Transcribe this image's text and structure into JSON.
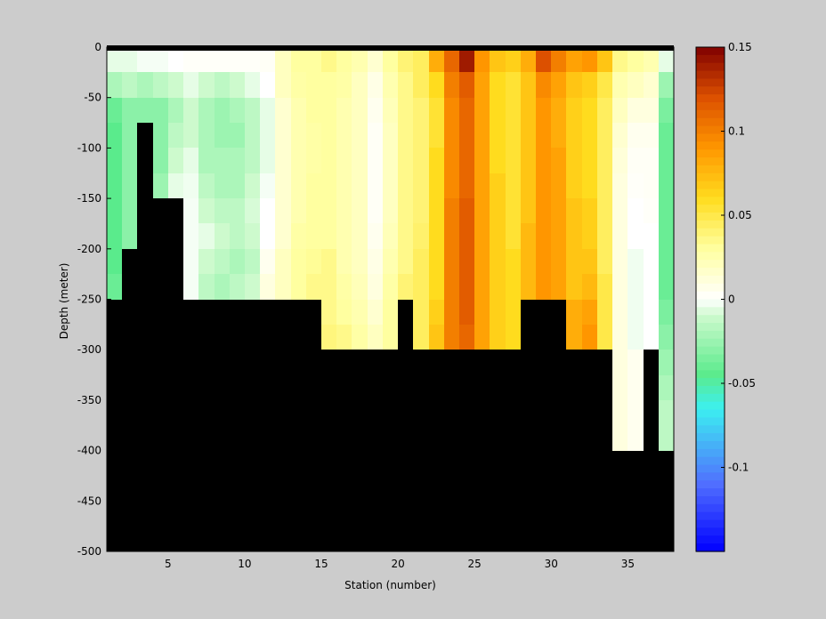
{
  "chart_data": {
    "type": "heatmap",
    "title": "",
    "xlabel": "Station (number)",
    "ylabel": "Depth (meter)",
    "xlim": [
      1,
      38
    ],
    "ylim": [
      -500,
      0
    ],
    "x_ticks": [
      5,
      10,
      15,
      20,
      25,
      30,
      35
    ],
    "y_ticks": [
      0,
      -50,
      -100,
      -150,
      -200,
      -250,
      -300,
      -350,
      -400,
      -450,
      -500
    ],
    "stations": [
      1,
      2,
      3,
      4,
      5,
      6,
      7,
      8,
      9,
      10,
      11,
      12,
      13,
      14,
      15,
      16,
      17,
      18,
      19,
      20,
      21,
      22,
      23,
      24,
      25,
      26,
      27,
      28,
      29,
      30,
      31,
      32,
      33,
      34,
      35,
      36,
      37
    ],
    "depth_levels": [
      0,
      -25,
      -50,
      -75,
      -100,
      -125,
      -150,
      -175,
      -200,
      -225,
      -250,
      -275,
      -300,
      -325,
      -350,
      -375
    ],
    "bottom_depth": [
      -250,
      -200,
      -75,
      -150,
      -150,
      -250,
      -250,
      -250,
      -250,
      -250,
      -250,
      -250,
      -250,
      -250,
      -300,
      -300,
      -300,
      -300,
      -300,
      -250,
      -300,
      -300,
      -300,
      -300,
      -300,
      -300,
      -300,
      -250,
      -250,
      -250,
      -300,
      -300,
      -300,
      -400,
      -400,
      -300,
      -400
    ],
    "values_by_station": [
      [
        -0.005,
        -0.02,
        -0.04,
        -0.045,
        -0.045,
        -0.045,
        -0.045,
        -0.045,
        -0.045,
        -0.04
      ],
      [
        -0.005,
        -0.015,
        -0.03,
        -0.03,
        -0.03,
        -0.03,
        -0.03,
        -0.03
      ],
      [
        -0.002,
        -0.02,
        -0.03
      ],
      [
        -0.002,
        -0.015,
        -0.03,
        -0.03,
        -0.03,
        -0.025
      ],
      [
        0.0,
        -0.01,
        -0.02,
        -0.015,
        -0.01,
        -0.005
      ],
      [
        0.002,
        -0.005,
        -0.01,
        -0.01,
        -0.005,
        -0.003,
        -0.002,
        -0.002,
        -0.002,
        -0.002
      ],
      [
        0.002,
        -0.01,
        -0.02,
        -0.02,
        -0.02,
        -0.015,
        -0.01,
        -0.005,
        -0.01,
        -0.015
      ],
      [
        0.002,
        -0.015,
        -0.025,
        -0.025,
        -0.02,
        -0.02,
        -0.015,
        -0.01,
        -0.015,
        -0.02
      ],
      [
        0.002,
        -0.01,
        -0.02,
        -0.025,
        -0.02,
        -0.02,
        -0.015,
        -0.015,
        -0.02,
        -0.015
      ],
      [
        0.002,
        -0.005,
        -0.015,
        -0.015,
        -0.015,
        -0.01,
        -0.008,
        -0.01,
        -0.015,
        -0.01
      ],
      [
        0.003,
        0.0,
        -0.005,
        -0.005,
        -0.005,
        -0.002,
        0.0,
        0.0,
        0.005,
        0.01
      ],
      [
        0.02,
        0.02,
        0.015,
        0.015,
        0.015,
        0.015,
        0.015,
        0.015,
        0.02,
        0.02
      ],
      [
        0.03,
        0.028,
        0.025,
        0.025,
        0.025,
        0.025,
        0.025,
        0.028,
        0.03,
        0.03
      ],
      [
        0.03,
        0.03,
        0.03,
        0.028,
        0.028,
        0.03,
        0.03,
        0.03,
        0.032,
        0.035
      ],
      [
        0.035,
        0.03,
        0.03,
        0.03,
        0.03,
        0.03,
        0.03,
        0.03,
        0.035,
        0.035,
        0.035,
        0.038
      ],
      [
        0.03,
        0.028,
        0.025,
        0.025,
        0.025,
        0.025,
        0.025,
        0.025,
        0.025,
        0.028,
        0.03,
        0.035
      ],
      [
        0.025,
        0.02,
        0.02,
        0.02,
        0.02,
        0.02,
        0.02,
        0.02,
        0.02,
        0.022,
        0.025,
        0.028
      ],
      [
        0.015,
        0.008,
        0.005,
        0.003,
        0.003,
        0.003,
        0.003,
        0.005,
        0.008,
        0.01,
        0.015,
        0.02
      ],
      [
        0.03,
        0.025,
        0.022,
        0.02,
        0.02,
        0.02,
        0.02,
        0.022,
        0.025,
        0.028,
        0.03,
        0.03
      ],
      [
        0.04,
        0.035,
        0.035,
        0.035,
        0.035,
        0.035,
        0.035,
        0.035,
        0.035,
        0.04
      ],
      [
        0.045,
        0.045,
        0.04,
        0.04,
        0.04,
        0.04,
        0.04,
        0.042,
        0.045,
        0.045,
        0.045,
        0.045
      ],
      [
        0.08,
        0.06,
        0.055,
        0.055,
        0.06,
        0.06,
        0.06,
        0.06,
        0.06,
        0.06,
        0.065,
        0.07
      ],
      [
        0.11,
        0.1,
        0.095,
        0.095,
        0.095,
        0.095,
        0.1,
        0.1,
        0.1,
        0.1,
        0.1,
        0.1
      ],
      [
        0.14,
        0.115,
        0.11,
        0.11,
        0.11,
        0.11,
        0.115,
        0.115,
        0.115,
        0.115,
        0.115,
        0.11
      ],
      [
        0.09,
        0.085,
        0.085,
        0.085,
        0.085,
        0.085,
        0.085,
        0.085,
        0.085,
        0.085,
        0.085,
        0.085
      ],
      [
        0.07,
        0.06,
        0.06,
        0.06,
        0.06,
        0.065,
        0.065,
        0.065,
        0.065,
        0.065,
        0.065,
        0.065
      ],
      [
        0.065,
        0.055,
        0.055,
        0.055,
        0.055,
        0.055,
        0.055,
        0.055,
        0.06,
        0.06,
        0.06,
        0.06
      ],
      [
        0.08,
        0.07,
        0.07,
        0.07,
        0.07,
        0.07,
        0.07,
        0.075,
        0.075,
        0.075
      ],
      [
        0.12,
        0.095,
        0.09,
        0.09,
        0.09,
        0.09,
        0.09,
        0.09,
        0.09,
        0.09
      ],
      [
        0.1,
        0.085,
        0.08,
        0.08,
        0.085,
        0.085,
        0.085,
        0.085,
        0.085,
        0.085
      ],
      [
        0.085,
        0.07,
        0.065,
        0.065,
        0.065,
        0.065,
        0.07,
        0.07,
        0.07,
        0.07,
        0.08,
        0.08
      ],
      [
        0.09,
        0.065,
        0.06,
        0.06,
        0.06,
        0.06,
        0.065,
        0.065,
        0.07,
        0.075,
        0.085,
        0.09
      ],
      [
        0.07,
        0.05,
        0.045,
        0.045,
        0.045,
        0.045,
        0.045,
        0.045,
        0.045,
        0.05,
        0.05,
        0.05
      ],
      [
        0.035,
        0.025,
        0.02,
        0.015,
        0.012,
        0.01,
        0.01,
        0.01,
        0.01,
        0.01,
        0.01,
        0.01,
        0.01,
        0.01,
        0.01,
        0.01
      ],
      [
        0.03,
        0.02,
        0.01,
        0.005,
        0.003,
        0.002,
        0.0,
        0.0,
        -0.003,
        -0.003,
        -0.003,
        -0.003,
        0.005,
        0.005,
        0.005,
        0.005
      ],
      [
        0.025,
        0.015,
        0.01,
        0.005,
        0.003,
        0.003,
        0.002,
        0.0,
        0.0,
        0.0,
        0.0,
        0.0
      ],
      [
        -0.005,
        -0.025,
        -0.035,
        -0.04,
        -0.04,
        -0.04,
        -0.04,
        -0.04,
        -0.04,
        -0.04,
        -0.035,
        -0.03,
        -0.025,
        -0.02,
        -0.015,
        -0.015
      ]
    ],
    "colorbar": {
      "clim": [
        -0.15,
        0.15
      ],
      "ticks": [
        0.15,
        0.1,
        0.05,
        0,
        -0.05,
        -0.1
      ],
      "tick_labels": [
        "0.15",
        "0.1",
        "0.05",
        "0",
        "-0.05",
        "-0.1"
      ]
    },
    "grid": false,
    "colors": {
      "background": "#cccccc",
      "mask": "#000000",
      "zero": "#ffffff",
      "max": "#800000",
      "min": "#0000ff"
    }
  }
}
